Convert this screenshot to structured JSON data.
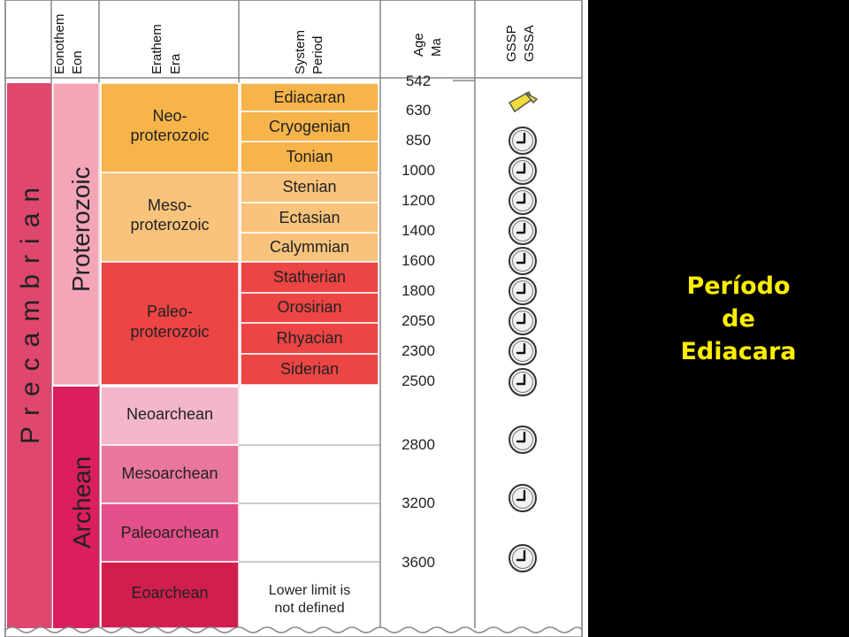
{
  "headers": {
    "eonothem_eon": [
      "Eonothem",
      "Eon"
    ],
    "erathem_era": [
      "Erathem",
      "Era"
    ],
    "system_period": [
      "System",
      "Period"
    ],
    "age_ma": [
      "Age",
      "Ma"
    ],
    "gssp_gssa": [
      "GSSP",
      "GSSA"
    ]
  },
  "supereon": "Precambrian",
  "eons": [
    "Proterozoic",
    "Archean"
  ],
  "eras": [
    {
      "lines": [
        "Neo-",
        "proterozoic"
      ]
    },
    {
      "lines": [
        "Meso-",
        "proterozoic"
      ]
    },
    {
      "lines": [
        "Paleo-",
        "proterozoic"
      ]
    },
    {
      "lines": [
        "Neoarchean"
      ]
    },
    {
      "lines": [
        "Mesoarchean"
      ]
    },
    {
      "lines": [
        "Paleoarchean"
      ]
    },
    {
      "lines": [
        "Eoarchean"
      ]
    }
  ],
  "periods": [
    "Ediacaran",
    "Cryogenian",
    "Tonian",
    "Stenian",
    "Ectasian",
    "Calymmian",
    "Statherian",
    "Orosirian",
    "Rhyacian",
    "Siderian"
  ],
  "lower_limit_note": [
    "Lower limit is",
    "not defined"
  ],
  "ages": [
    "542",
    "630",
    "850",
    "1000",
    "1200",
    "1400",
    "1600",
    "1800",
    "2050",
    "2300",
    "2500",
    "2800",
    "3200",
    "3600"
  ],
  "boundary_markers": [
    "gssp-spike",
    "gssa-clock",
    "gssa-clock",
    "gssa-clock",
    "gssa-clock",
    "gssa-clock",
    "gssa-clock",
    "gssa-clock",
    "gssa-clock",
    "gssa-clock",
    "gssa-clock",
    "gssa-clock",
    "gssa-clock",
    "gssa-clock"
  ],
  "colors": {
    "precambrian": "#e0476e",
    "proterozoic": "#f4a6b8",
    "archean": "#da1e5e",
    "neoproterozoic": "#f7b44a",
    "mesoproterozoic": "#f9c37c",
    "paleoproterozoic": "#ec4544",
    "neoarchean": "#f4b6cc",
    "mesoarchean": "#e8769f",
    "paleoarchean": "#e4508a",
    "eoarchean": "#d01f4e",
    "gssp_spike": "#f0dc3c",
    "caption": "#ffee00"
  },
  "caption": [
    "Período",
    "de",
    "Ediacara"
  ]
}
